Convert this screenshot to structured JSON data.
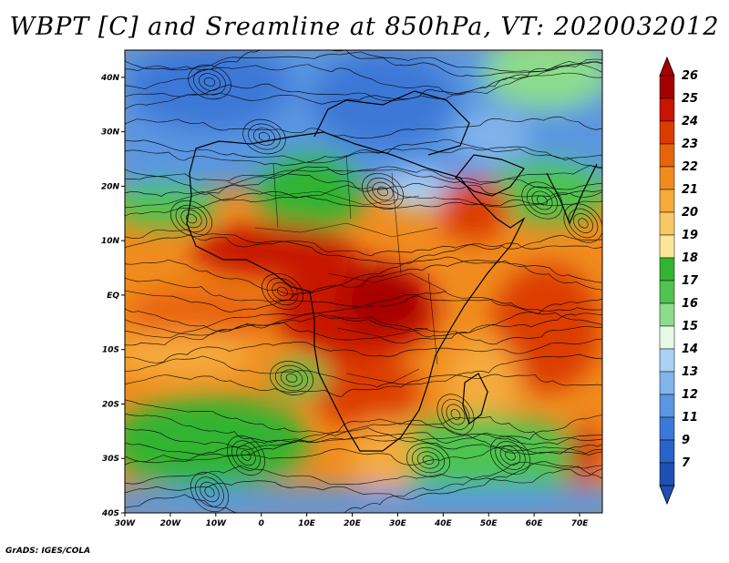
{
  "title": "WBPT [C] and Sreamline at 850hPa, VT: 2020032012",
  "credit": "GrADS: IGES/COLA",
  "map": {
    "lat_labels": [
      "40N",
      "30N",
      "20N",
      "10N",
      "EQ",
      "10S",
      "20S",
      "30S",
      "40S"
    ],
    "lon_labels": [
      "30W",
      "20W",
      "10W",
      "0",
      "10E",
      "20E",
      "30E",
      "40E",
      "50E",
      "60E",
      "70E"
    ],
    "lon_range": [
      -30,
      75
    ],
    "lat_range": [
      -40,
      45
    ]
  },
  "colorbar": {
    "labels": [
      "26",
      "25",
      "24",
      "23",
      "22",
      "21",
      "20",
      "19",
      "18",
      "17",
      "16",
      "15",
      "14",
      "13",
      "12",
      "11",
      "9",
      "7"
    ],
    "colors": [
      "#a50000",
      "#c81400",
      "#dc3c00",
      "#e8640a",
      "#f08c1e",
      "#f5aa3c",
      "#f8c864",
      "#fae696",
      "#32b432",
      "#50c350",
      "#8cdc8c",
      "#e6fae6",
      "#aad2f5",
      "#82b4eb",
      "#5a96e1",
      "#3c78d7",
      "#2864c8",
      "#1e50b4"
    ]
  }
}
